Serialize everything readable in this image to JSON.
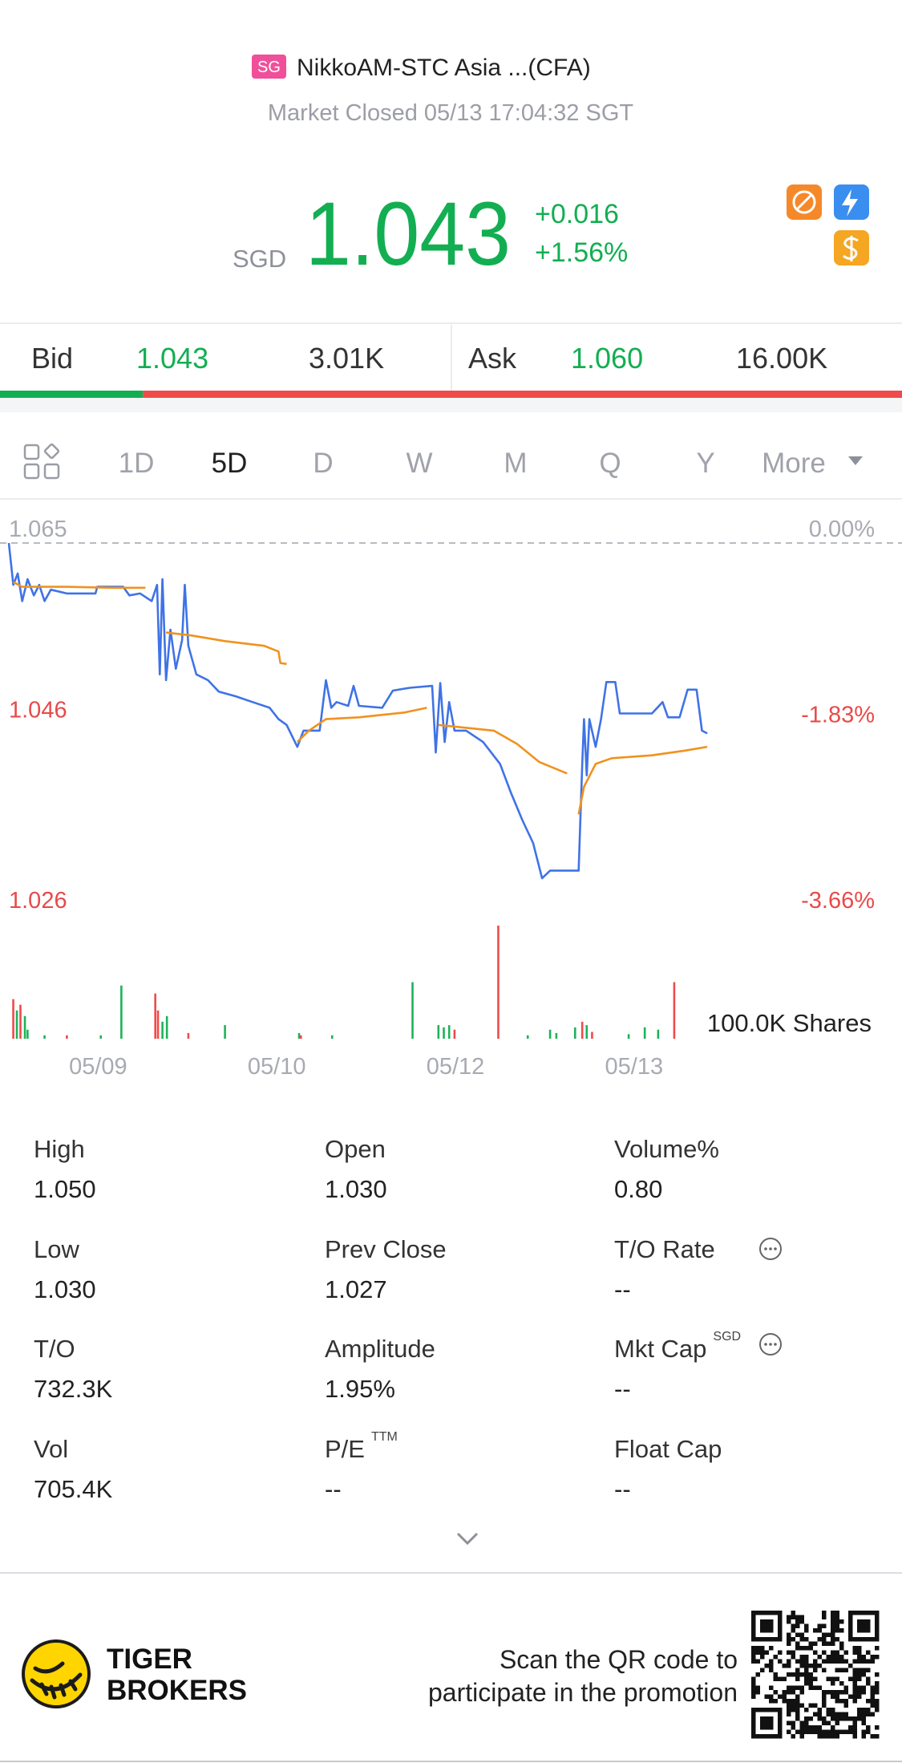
{
  "header": {
    "market_badge": "SG",
    "name": "NikkoAM-STC Asia ...(CFA)",
    "status": "Market Closed 05/13 17:04:32 SGT"
  },
  "quote": {
    "currency": "SGD",
    "price": "1.043",
    "change": "+0.016",
    "change_pct": "+1.56%"
  },
  "order_book": {
    "bid_label": "Bid",
    "bid": "1.043",
    "bid_size": "3.01K",
    "ask_label": "Ask",
    "ask": "1.060",
    "ask_size": "16.00K"
  },
  "tabs": [
    "1D",
    "5D",
    "D",
    "W",
    "M",
    "Q",
    "Y",
    "More"
  ],
  "selected_tab": "5D",
  "chart_data": [
    {
      "type": "line",
      "xlim": [
        0,
        100
      ],
      "xticks": [
        {
          "value": 10,
          "label": "05/09"
        },
        {
          "value": 30,
          "label": "05/10"
        },
        {
          "value": 50,
          "label": "05/12"
        },
        {
          "value": 70,
          "label": "05/13"
        }
      ],
      "ylim": [
        1.026,
        1.065
      ],
      "yticks": [
        1.065,
        1.046,
        1.026
      ],
      "y2lim": [
        -3.66,
        0
      ],
      "y2ticks": [
        {
          "value": 0,
          "label": "0.00%"
        },
        {
          "value": -1.83,
          "label": "-1.83%"
        },
        {
          "value": -3.66,
          "label": "-3.66%"
        }
      ],
      "series": [
        {
          "color": "#3f73e6",
          "x": [
            0,
            0.5,
            1.0,
            1.5,
            2.1,
            2.8,
            3.4,
            4.0,
            4.7,
            6.5,
            9.7,
            9.9,
            12.8,
            13.5,
            14.7,
            16.0,
            16.6,
            16.9,
            17.2,
            17.6,
            18.1,
            18.7,
            19.4,
            19.7,
            20.1,
            21.0,
            22.3,
            23.5,
            25.4,
            27.3,
            29.2,
            30.2,
            31.1,
            32.3,
            33.0,
            34.8,
            35.5,
            36.1,
            36.7,
            38.0,
            38.6,
            39.2,
            41.8,
            43.0,
            44.9,
            47.4,
            47.8,
            48.3,
            48.8,
            49.3,
            49.9,
            51.2,
            53.1,
            55.0,
            56.2,
            57.5,
            58.7,
            59.7,
            60.6,
            63.8,
            64.2,
            64.4,
            64.7,
            65.0,
            65.7,
            66.3,
            66.9,
            67.9,
            68.4,
            72.0,
            73.2,
            73.8,
            75.1,
            76.0,
            77.0,
            77.6,
            78.2
          ],
          "values": [
            1.065,
            1.0606,
            1.0618,
            1.0589,
            1.0612,
            1.0595,
            1.0606,
            1.0589,
            1.0601,
            1.0597,
            1.0597,
            1.0604,
            1.0604,
            1.0595,
            1.0597,
            1.0589,
            1.0606,
            1.0512,
            1.0612,
            1.0506,
            1.0559,
            1.0518,
            1.0548,
            1.0606,
            1.0542,
            1.0512,
            1.0506,
            1.0494,
            1.0489,
            1.0483,
            1.0477,
            1.0465,
            1.0459,
            1.0436,
            1.0453,
            1.0453,
            1.0506,
            1.0477,
            1.0483,
            1.0479,
            1.05,
            1.0479,
            1.0477,
            1.0495,
            1.0498,
            1.05,
            1.043,
            1.0503,
            1.0441,
            1.0483,
            1.0453,
            1.0453,
            1.0441,
            1.0418,
            1.0388,
            1.0359,
            1.0335,
            1.0298,
            1.0306,
            1.0306,
            1.0418,
            1.0465,
            1.0406,
            1.0465,
            1.0436,
            1.0465,
            1.0504,
            1.0504,
            1.0471,
            1.0471,
            1.0483,
            1.0467,
            1.0467,
            1.0496,
            1.0496,
            1.0453,
            1.045
          ]
        },
        {
          "color": "#f0921e",
          "x": [
            0.5,
            1.5,
            6.5,
            11.6,
            15.3,
            null,
            17.6,
            20.4,
            24.2,
            28.6,
            30.2,
            30.4,
            31.1,
            null,
            32.3,
            33.6,
            35.5,
            39.2,
            44.3,
            46.8,
            null,
            48.1,
            54.3,
            56.9,
            59.4,
            62.5,
            null,
            63.8,
            64.4,
            65.7,
            67.5,
            72.0,
            75.7,
            78.2
          ],
          "values": [
            1.0609,
            1.0604,
            1.0604,
            1.0603,
            1.0603,
            null,
            1.0556,
            1.0553,
            1.0547,
            1.0542,
            1.0536,
            1.0524,
            1.0523,
            null,
            1.0441,
            1.0453,
            1.0465,
            1.0467,
            1.0472,
            1.0477,
            null,
            1.0459,
            1.0453,
            1.0439,
            1.042,
            1.0408,
            null,
            1.0365,
            1.0394,
            1.0418,
            1.0424,
            1.0427,
            1.0432,
            1.0436
          ]
        }
      ]
    },
    {
      "type": "bar",
      "xlim": [
        0,
        100
      ],
      "ylim": [
        0,
        100000
      ],
      "yticks": [
        {
          "value": 100000,
          "label": "100.0K Shares"
        }
      ],
      "x": [
        0.5,
        0.9,
        1.3,
        1.8,
        2.1,
        4.0,
        6.5,
        10.3,
        12.6,
        16.4,
        16.7,
        17.2,
        17.7,
        20.1,
        24.2,
        32.5,
        32.7,
        36.2,
        45.2,
        48.1,
        48.7,
        49.3,
        49.9,
        54.8,
        58.1,
        60.6,
        61.3,
        63.4,
        64.2,
        64.7,
        65.3,
        69.4,
        71.2,
        72.7,
        74.5
      ],
      "values": [
        35000,
        25000,
        30000,
        20000,
        8000,
        3000,
        3000,
        3000,
        47000,
        40000,
        25000,
        15000,
        20000,
        5000,
        12000,
        5000,
        3000,
        3000,
        50000,
        12000,
        10000,
        12000,
        8000,
        100000,
        3000,
        8000,
        5000,
        10000,
        15000,
        12000,
        6000,
        4000,
        10000,
        8000,
        50000
      ],
      "colors": [
        "#f04a4a",
        "#1fb25a",
        "#f04a4a",
        "#1fb25a",
        "#1fb25a",
        "#1fb25a",
        "#f04a4a",
        "#1fb25a",
        "#1fb25a",
        "#f04a4a",
        "#f04a4a",
        "#1fb25a",
        "#1fb25a",
        "#f04a4a",
        "#1fb25a",
        "#1fb25a",
        "#f04a4a",
        "#1fb25a",
        "#1fb25a",
        "#1fb25a",
        "#1fb25a",
        "#1fb25a",
        "#f04a4a",
        "#f04a4a",
        "#1fb25a",
        "#1fb25a",
        "#1fb25a",
        "#1fb25a",
        "#f04a4a",
        "#1fb25a",
        "#f04a4a",
        "#1fb25a",
        "#1fb25a",
        "#1fb25a",
        "#f04a4a"
      ]
    }
  ],
  "stats": [
    {
      "label": "High",
      "value": "1.050"
    },
    {
      "label": "Open",
      "value": "1.030"
    },
    {
      "label": "Volume%",
      "value": "0.80"
    },
    {
      "label": "Low",
      "value": "1.030"
    },
    {
      "label": "Prev Close",
      "value": "1.027"
    },
    {
      "label": "T/O Rate",
      "value": "--",
      "info": true
    },
    {
      "label": "T/O",
      "value": "732.3K"
    },
    {
      "label": "Amplitude",
      "value": "1.95%"
    },
    {
      "label": "Mkt Cap",
      "sup": "SGD",
      "value": "--",
      "info": true
    },
    {
      "label": "Vol",
      "value": "705.4K"
    },
    {
      "label": "P/E",
      "sup": "TTM",
      "value": "--"
    },
    {
      "label": "Float Cap",
      "value": "--"
    }
  ],
  "footer": {
    "brand_line1": "TIGER",
    "brand_line2": "BROKERS",
    "promo_line1": "Scan the QR code to",
    "promo_line2": "participate in the promotion"
  }
}
